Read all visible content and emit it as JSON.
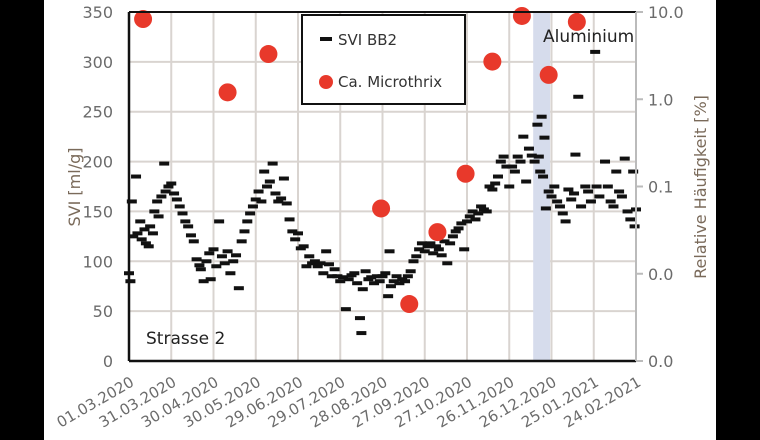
{
  "chart_data": {
    "type": "scatter",
    "title": "",
    "annotations": {
      "panel_label": "Strasse 2",
      "band_label": "Aluminium",
      "band_start": "13.12.2020",
      "band_end": "25.12.2020",
      "band_color": "#d6dcec"
    },
    "x_axis": {
      "type": "date",
      "range": [
        "01.03.2020",
        "24.02.2021"
      ],
      "tick_labels": [
        "01.03.2020",
        "31.03.2020",
        "30.04.2020",
        "30.05.2020",
        "29.06.2020",
        "29.07.2020",
        "28.08.2020",
        "27.09.2020",
        "27.10.2020",
        "26.11.2020",
        "26.12.2020",
        "25.01.2021",
        "24.02.2021"
      ]
    },
    "y_axis_left": {
      "label": "SVI [ml/g]",
      "range": [
        0,
        350
      ],
      "ticks": [
        0,
        50,
        100,
        150,
        200,
        250,
        300,
        350
      ],
      "grid": true
    },
    "y_axis_right": {
      "label": "Relative Häufigkeit [%]",
      "scale": "log",
      "range": [
        0.001,
        10
      ],
      "ticks": [
        0.001,
        0.01,
        0.1,
        1,
        10
      ],
      "tick_labels": [
        "0.0",
        "0.0",
        "0.1",
        "1.0",
        "10.0"
      ]
    },
    "legend": {
      "placement": "top-center",
      "entries": [
        "SVI BB2",
        "Ca. Microthrix"
      ]
    },
    "series": [
      {
        "name": "SVI BB2",
        "axis": "left",
        "marker": "dash",
        "color": "#111111",
        "points": [
          [
            "01.03.2020",
            88
          ],
          [
            "02.03.2020",
            80
          ],
          [
            "03.03.2020",
            160
          ],
          [
            "04.03.2020",
            125
          ],
          [
            "06.03.2020",
            185
          ],
          [
            "07.03.2020",
            128
          ],
          [
            "09.03.2020",
            140
          ],
          [
            "10.03.2020",
            122
          ],
          [
            "12.03.2020",
            132
          ],
          [
            "13.03.2020",
            118
          ],
          [
            "15.03.2020",
            115
          ],
          [
            "16.03.2020",
            135
          ],
          [
            "18.03.2020",
            128
          ],
          [
            "19.03.2020",
            150
          ],
          [
            "21.03.2020",
            160
          ],
          [
            "22.03.2020",
            145
          ],
          [
            "24.03.2020",
            165
          ],
          [
            "26.03.2020",
            198
          ],
          [
            "27.03.2020",
            170
          ],
          [
            "29.03.2020",
            175
          ],
          [
            "31.03.2020",
            178
          ],
          [
            "02.04.2020",
            168
          ],
          [
            "04.04.2020",
            162
          ],
          [
            "06.04.2020",
            155
          ],
          [
            "08.04.2020",
            148
          ],
          [
            "10.04.2020",
            140
          ],
          [
            "12.04.2020",
            135
          ],
          [
            "14.04.2020",
            126
          ],
          [
            "16.04.2020",
            120
          ],
          [
            "18.04.2020",
            102
          ],
          [
            "20.04.2020",
            96
          ],
          [
            "21.04.2020",
            92
          ],
          [
            "23.04.2020",
            80
          ],
          [
            "25.04.2020",
            100
          ],
          [
            "27.04.2020",
            108
          ],
          [
            "28.04.2020",
            82
          ],
          [
            "30.04.2020",
            112
          ],
          [
            "02.05.2020",
            95
          ],
          [
            "04.05.2020",
            140
          ],
          [
            "06.05.2020",
            105
          ],
          [
            "08.05.2020",
            98
          ],
          [
            "10.05.2020",
            110
          ],
          [
            "12.05.2020",
            88
          ],
          [
            "14.05.2020",
            100
          ],
          [
            "16.05.2020",
            106
          ],
          [
            "18.05.2020",
            73
          ],
          [
            "20.05.2020",
            120
          ],
          [
            "22.05.2020",
            130
          ],
          [
            "24.05.2020",
            140
          ],
          [
            "26.05.2020",
            148
          ],
          [
            "28.05.2020",
            155
          ],
          [
            "30.05.2020",
            162
          ],
          [
            "01.06.2020",
            170
          ],
          [
            "03.06.2020",
            160
          ],
          [
            "05.06.2020",
            190
          ],
          [
            "07.06.2020",
            175
          ],
          [
            "09.06.2020",
            180
          ],
          [
            "11.06.2020",
            198
          ],
          [
            "13.06.2020",
            168
          ],
          [
            "15.06.2020",
            160
          ],
          [
            "17.06.2020",
            163
          ],
          [
            "19.06.2020",
            183
          ],
          [
            "21.06.2020",
            158
          ],
          [
            "23.06.2020",
            142
          ],
          [
            "25.06.2020",
            130
          ],
          [
            "27.06.2020",
            122
          ],
          [
            "29.06.2020",
            128
          ],
          [
            "01.07.2020",
            113
          ],
          [
            "03.07.2020",
            115
          ],
          [
            "05.07.2020",
            95
          ],
          [
            "07.07.2020",
            105
          ],
          [
            "09.07.2020",
            98
          ],
          [
            "11.07.2020",
            100
          ],
          [
            "13.07.2020",
            95
          ],
          [
            "15.07.2020",
            98
          ],
          [
            "17.07.2020",
            88
          ],
          [
            "19.07.2020",
            110
          ],
          [
            "21.07.2020",
            97
          ],
          [
            "23.07.2020",
            85
          ],
          [
            "25.07.2020",
            92
          ],
          [
            "27.07.2020",
            85
          ],
          [
            "29.07.2020",
            80
          ],
          [
            "31.07.2020",
            84
          ],
          [
            "02.08.2020",
            52
          ],
          [
            "04.08.2020",
            82
          ],
          [
            "06.08.2020",
            86
          ],
          [
            "08.08.2020",
            88
          ],
          [
            "10.08.2020",
            78
          ],
          [
            "12.08.2020",
            43
          ],
          [
            "13.08.2020",
            28
          ],
          [
            "14.08.2020",
            72
          ],
          [
            "16.08.2020",
            90
          ],
          [
            "18.08.2020",
            82
          ],
          [
            "20.08.2020",
            84
          ],
          [
            "22.08.2020",
            78
          ],
          [
            "24.08.2020",
            85
          ],
          [
            "26.08.2020",
            80
          ],
          [
            "28.08.2020",
            85
          ],
          [
            "30.08.2020",
            88
          ],
          [
            "01.09.2020",
            65
          ],
          [
            "02.09.2020",
            110
          ],
          [
            "03.09.2020",
            75
          ],
          [
            "05.09.2020",
            80
          ],
          [
            "07.09.2020",
            85
          ],
          [
            "09.09.2020",
            78
          ],
          [
            "11.09.2020",
            82
          ],
          [
            "13.09.2020",
            80
          ],
          [
            "15.09.2020",
            85
          ],
          [
            "17.09.2020",
            90
          ],
          [
            "19.09.2020",
            100
          ],
          [
            "21.09.2020",
            105
          ],
          [
            "23.09.2020",
            112
          ],
          [
            "25.09.2020",
            118
          ],
          [
            "27.09.2020",
            110
          ],
          [
            "29.09.2020",
            115
          ],
          [
            "01.10.2020",
            118
          ],
          [
            "03.10.2020",
            108
          ],
          [
            "05.10.2020",
            115
          ],
          [
            "07.10.2020",
            112
          ],
          [
            "09.10.2020",
            106
          ],
          [
            "11.10.2020",
            120
          ],
          [
            "13.10.2020",
            98
          ],
          [
            "15.10.2020",
            118
          ],
          [
            "17.10.2020",
            125
          ],
          [
            "19.10.2020",
            130
          ],
          [
            "21.10.2020",
            133
          ],
          [
            "23.10.2020",
            138
          ],
          [
            "25.10.2020",
            112
          ],
          [
            "27.10.2020",
            140
          ],
          [
            "29.10.2020",
            145
          ],
          [
            "31.10.2020",
            150
          ],
          [
            "02.11.2020",
            142
          ],
          [
            "04.11.2020",
            148
          ],
          [
            "06.11.2020",
            155
          ],
          [
            "08.11.2020",
            152
          ],
          [
            "10.11.2020",
            150
          ],
          [
            "12.11.2020",
            175
          ],
          [
            "14.11.2020",
            172
          ],
          [
            "16.11.2020",
            178
          ],
          [
            "18.11.2020",
            185
          ],
          [
            "20.11.2020",
            200
          ],
          [
            "22.11.2020",
            205
          ],
          [
            "24.11.2020",
            195
          ],
          [
            "26.11.2020",
            175
          ],
          [
            "28.11.2020",
            195
          ],
          [
            "30.11.2020",
            190
          ],
          [
            "02.12.2020",
            205
          ],
          [
            "04.12.2020",
            200
          ],
          [
            "06.12.2020",
            225
          ],
          [
            "08.12.2020",
            180
          ],
          [
            "10.12.2020",
            213
          ],
          [
            "12.12.2020",
            206
          ],
          [
            "14.12.2020",
            200
          ],
          [
            "16.12.2020",
            237
          ],
          [
            "17.12.2020",
            205
          ],
          [
            "18.12.2020",
            190
          ],
          [
            "19.12.2020",
            245
          ],
          [
            "20.12.2020",
            185
          ],
          [
            "21.12.2020",
            224
          ],
          [
            "22.12.2020",
            153
          ],
          [
            "24.12.2020",
            170
          ],
          [
            "26.12.2020",
            165
          ],
          [
            "28.12.2020",
            175
          ],
          [
            "30.12.2020",
            160
          ],
          [
            "01.01.2021",
            155
          ],
          [
            "03.01.2021",
            148
          ],
          [
            "05.01.2021",
            140
          ],
          [
            "07.01.2021",
            172
          ],
          [
            "09.01.2021",
            162
          ],
          [
            "11.01.2021",
            168
          ],
          [
            "12.01.2021",
            207
          ],
          [
            "14.01.2021",
            265
          ],
          [
            "16.01.2021",
            155
          ],
          [
            "19.01.2021",
            175
          ],
          [
            "21.01.2021",
            170
          ],
          [
            "23.01.2021",
            160
          ],
          [
            "26.01.2021",
            310
          ],
          [
            "27.01.2021",
            175
          ],
          [
            "29.01.2021",
            165
          ],
          [
            "02.02.2021",
            200
          ],
          [
            "04.02.2021",
            175
          ],
          [
            "06.02.2021",
            160
          ],
          [
            "08.02.2021",
            155
          ],
          [
            "10.02.2021",
            190
          ],
          [
            "12.02.2021",
            170
          ],
          [
            "14.02.2021",
            165
          ],
          [
            "16.02.2021",
            203
          ],
          [
            "18.02.2021",
            150
          ],
          [
            "20.02.2021",
            142
          ],
          [
            "22.02.2021",
            190
          ],
          [
            "23.02.2021",
            135
          ],
          [
            "24.02.2021",
            152
          ]
        ]
      },
      {
        "name": "Ca. Microthrix",
        "axis": "right",
        "marker": "circle",
        "color": "#e8392b",
        "points": [
          [
            "11.03.2020",
            8.3
          ],
          [
            "10.05.2020",
            1.2
          ],
          [
            "08.06.2020",
            3.3
          ],
          [
            "27.08.2020",
            0.056
          ],
          [
            "16.09.2020",
            0.0045
          ],
          [
            "06.10.2020",
            0.03
          ],
          [
            "26.10.2020",
            0.14
          ],
          [
            "14.11.2020",
            2.7
          ],
          [
            "05.12.2020",
            9.0
          ],
          [
            "24.12.2020",
            1.9
          ],
          [
            "13.01.2021",
            7.7
          ]
        ]
      }
    ]
  }
}
